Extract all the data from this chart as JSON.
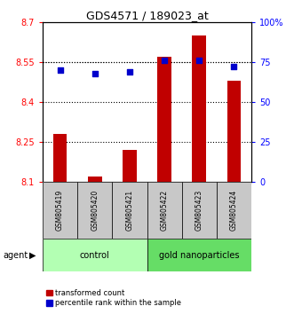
{
  "title": "GDS4571 / 189023_at",
  "samples": [
    "GSM805419",
    "GSM805420",
    "GSM805421",
    "GSM805422",
    "GSM805423",
    "GSM805424"
  ],
  "bar_values": [
    8.28,
    8.12,
    8.22,
    8.57,
    8.65,
    8.48
  ],
  "bar_baseline": 8.1,
  "percentile_values": [
    70,
    68,
    69,
    76,
    76,
    72
  ],
  "ylim_left": [
    8.1,
    8.7
  ],
  "ylim_right": [
    0,
    100
  ],
  "yticks_left": [
    8.1,
    8.25,
    8.4,
    8.55,
    8.7
  ],
  "yticks_right": [
    0,
    25,
    50,
    75,
    100
  ],
  "ytick_labels_right": [
    "0",
    "25",
    "50",
    "75",
    "100%"
  ],
  "bar_color": "#c00000",
  "blue_color": "#0000cc",
  "control_color": "#b3ffb3",
  "nanoparticles_color": "#66dd66",
  "sample_bg_color": "#c8c8c8",
  "legend_red_label": "transformed count",
  "legend_blue_label": "percentile rank within the sample",
  "agent_label": "agent"
}
